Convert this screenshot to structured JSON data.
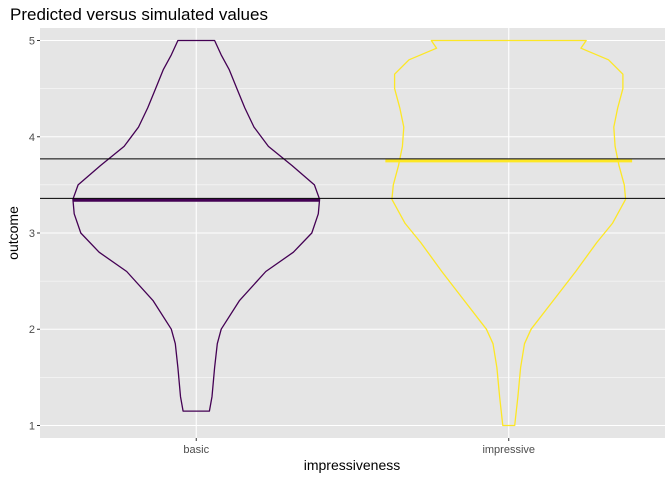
{
  "chart_data": {
    "type": "violin",
    "title": "Predicted versus simulated values",
    "xlabel": "impressiveness",
    "ylabel": "outcome",
    "categories": [
      "basic",
      "impressive"
    ],
    "yticks": [
      1,
      2,
      3,
      4,
      5
    ],
    "ylim": [
      0.87,
      5.13
    ],
    "grid": true,
    "background": "#e5e5e5",
    "gridline_color": "#ffffff",
    "series": [
      {
        "category": "basic",
        "color": "#440154",
        "mean": 3.34,
        "density": [
          [
            1.15,
            0.1
          ],
          [
            1.3,
            0.12
          ],
          [
            1.6,
            0.14
          ],
          [
            1.85,
            0.16
          ],
          [
            2.0,
            0.19
          ],
          [
            2.3,
            0.33
          ],
          [
            2.6,
            0.53
          ],
          [
            2.8,
            0.74
          ],
          [
            3.0,
            0.88
          ],
          [
            3.2,
            0.93
          ],
          [
            3.35,
            0.94
          ],
          [
            3.5,
            0.9
          ],
          [
            3.7,
            0.73
          ],
          [
            3.9,
            0.55
          ],
          [
            4.1,
            0.44
          ],
          [
            4.3,
            0.37
          ],
          [
            4.5,
            0.31
          ],
          [
            4.7,
            0.25
          ],
          [
            4.85,
            0.19
          ],
          [
            5.0,
            0.14
          ]
        ]
      },
      {
        "category": "impressive",
        "color": "#fde725",
        "mean": 3.75,
        "density": [
          [
            1.0,
            0.045
          ],
          [
            1.3,
            0.07
          ],
          [
            1.6,
            0.09
          ],
          [
            1.85,
            0.12
          ],
          [
            2.0,
            0.17
          ],
          [
            2.3,
            0.34
          ],
          [
            2.6,
            0.51
          ],
          [
            2.9,
            0.67
          ],
          [
            3.1,
            0.79
          ],
          [
            3.35,
            0.89
          ],
          [
            3.5,
            0.88
          ],
          [
            3.7,
            0.84
          ],
          [
            3.9,
            0.81
          ],
          [
            4.1,
            0.8
          ],
          [
            4.3,
            0.83
          ],
          [
            4.5,
            0.87
          ],
          [
            4.65,
            0.87
          ],
          [
            4.8,
            0.76
          ],
          [
            4.92,
            0.55
          ],
          [
            5.0,
            0.59
          ]
        ]
      }
    ],
    "reference_lines": [
      3.36,
      3.77
    ]
  }
}
